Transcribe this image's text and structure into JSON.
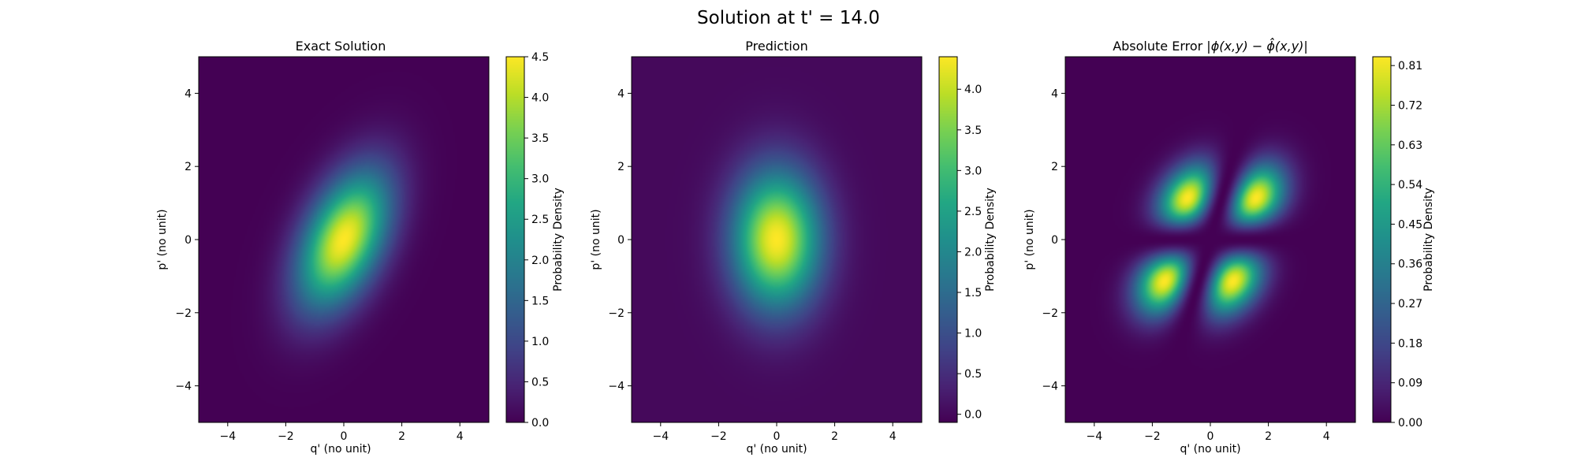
{
  "figure": {
    "suptitle": "Solution at t' = 14.0"
  },
  "chart_data": [
    {
      "type": "heatmap",
      "title": "Exact Solution",
      "xlabel": "q' (no unit)",
      "ylabel": "p' (no unit)",
      "xlim": [
        -5,
        5
      ],
      "ylim": [
        -5,
        5
      ],
      "xticks": [
        -4,
        -2,
        0,
        2,
        4
      ],
      "yticks": [
        -4,
        -2,
        0,
        2,
        4
      ],
      "colormap": "viridis",
      "colorbar": {
        "label": "Probability Density",
        "range": [
          0.0,
          4.5
        ],
        "ticks": [
          "0.0",
          "0.5",
          "1.0",
          "1.5",
          "2.0",
          "2.5",
          "3.0",
          "3.5",
          "4.0",
          "4.5"
        ]
      },
      "field": {
        "shape": "tilted-gaussian",
        "peak": 4.5,
        "center": [
          0,
          0
        ],
        "sigma_major": 1.45,
        "sigma_minor": 0.85,
        "tilt_deg": 55
      }
    },
    {
      "type": "heatmap",
      "title": "Prediction",
      "xlabel": "q' (no unit)",
      "ylabel": "p' (no unit)",
      "xlim": [
        -5,
        5
      ],
      "ylim": [
        -5,
        5
      ],
      "xticks": [
        -4,
        -2,
        0,
        2,
        4
      ],
      "yticks": [
        -4,
        -2,
        0,
        2,
        4
      ],
      "colormap": "viridis",
      "colorbar": {
        "label": "Probability Density",
        "range": [
          -0.1,
          4.4
        ],
        "ticks": [
          "0.0",
          "0.5",
          "1.0",
          "1.5",
          "2.0",
          "2.5",
          "3.0",
          "3.5",
          "4.0"
        ]
      },
      "field": {
        "shape": "gaussian",
        "peak": 4.4,
        "center": [
          0,
          0
        ],
        "sigma_x": 1.05,
        "sigma_y": 1.3
      }
    },
    {
      "type": "heatmap",
      "title_plain": "Absolute Error |",
      "title_math": "ϕ(x,y) − ",
      "title_hat": "ϕ̂",
      "title_math_end": "(x,y)|",
      "xlabel": "q' (no unit)",
      "ylabel": "p' (no unit)",
      "xlim": [
        -5,
        5
      ],
      "ylim": [
        -5,
        5
      ],
      "xticks": [
        -4,
        -2,
        0,
        2,
        4
      ],
      "yticks": [
        -4,
        -2,
        0,
        2,
        4
      ],
      "colormap": "viridis",
      "colorbar": {
        "label": "Probability Density",
        "range": [
          0.0,
          0.83
        ],
        "ticks": [
          "0.00",
          "0.09",
          "0.18",
          "0.27",
          "0.36",
          "0.45",
          "0.54",
          "0.63",
          "0.72",
          "0.81"
        ]
      },
      "field": {
        "shape": "four-lobe",
        "peak": 0.83,
        "lobes": [
          [
            -0.9,
            1.0
          ],
          [
            1.3,
            1.0
          ],
          [
            -1.3,
            -1.0
          ],
          [
            0.8,
            -1.0
          ]
        ]
      }
    }
  ]
}
